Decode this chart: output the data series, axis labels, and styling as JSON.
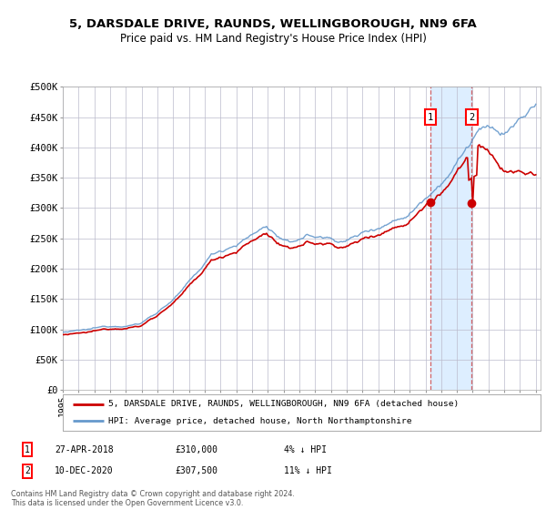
{
  "title1": "5, DARSDALE DRIVE, RAUNDS, WELLINGBOROUGH, NN9 6FA",
  "title2": "Price paid vs. HM Land Registry's House Price Index (HPI)",
  "ylim": [
    0,
    500000
  ],
  "yticks": [
    0,
    50000,
    100000,
    150000,
    200000,
    250000,
    300000,
    350000,
    400000,
    450000,
    500000
  ],
  "ytick_labels": [
    "£0",
    "£50K",
    "£100K",
    "£150K",
    "£200K",
    "£250K",
    "£300K",
    "£350K",
    "£400K",
    "£450K",
    "£500K"
  ],
  "sale1_date": 2018.32,
  "sale1_price": 310000,
  "sale1_label": "27-APR-2018",
  "sale1_val": "£310,000",
  "sale1_diff": "4% ↓ HPI",
  "sale2_date": 2020.94,
  "sale2_price": 307500,
  "sale2_label": "10-DEC-2020",
  "sale2_val": "£307,500",
  "sale2_diff": "11% ↓ HPI",
  "legend1": "5, DARSDALE DRIVE, RAUNDS, WELLINGBOROUGH, NN9 6FA (detached house)",
  "legend2": "HPI: Average price, detached house, North Northamptonshire",
  "footnote": "Contains HM Land Registry data © Crown copyright and database right 2024.\nThis data is licensed under the Open Government Licence v3.0.",
  "hpi_color": "#6699cc",
  "price_color": "#cc0000",
  "bg_color": "#ffffff",
  "shaded_color": "#ddeeff",
  "grid_color": "#bbbbcc"
}
